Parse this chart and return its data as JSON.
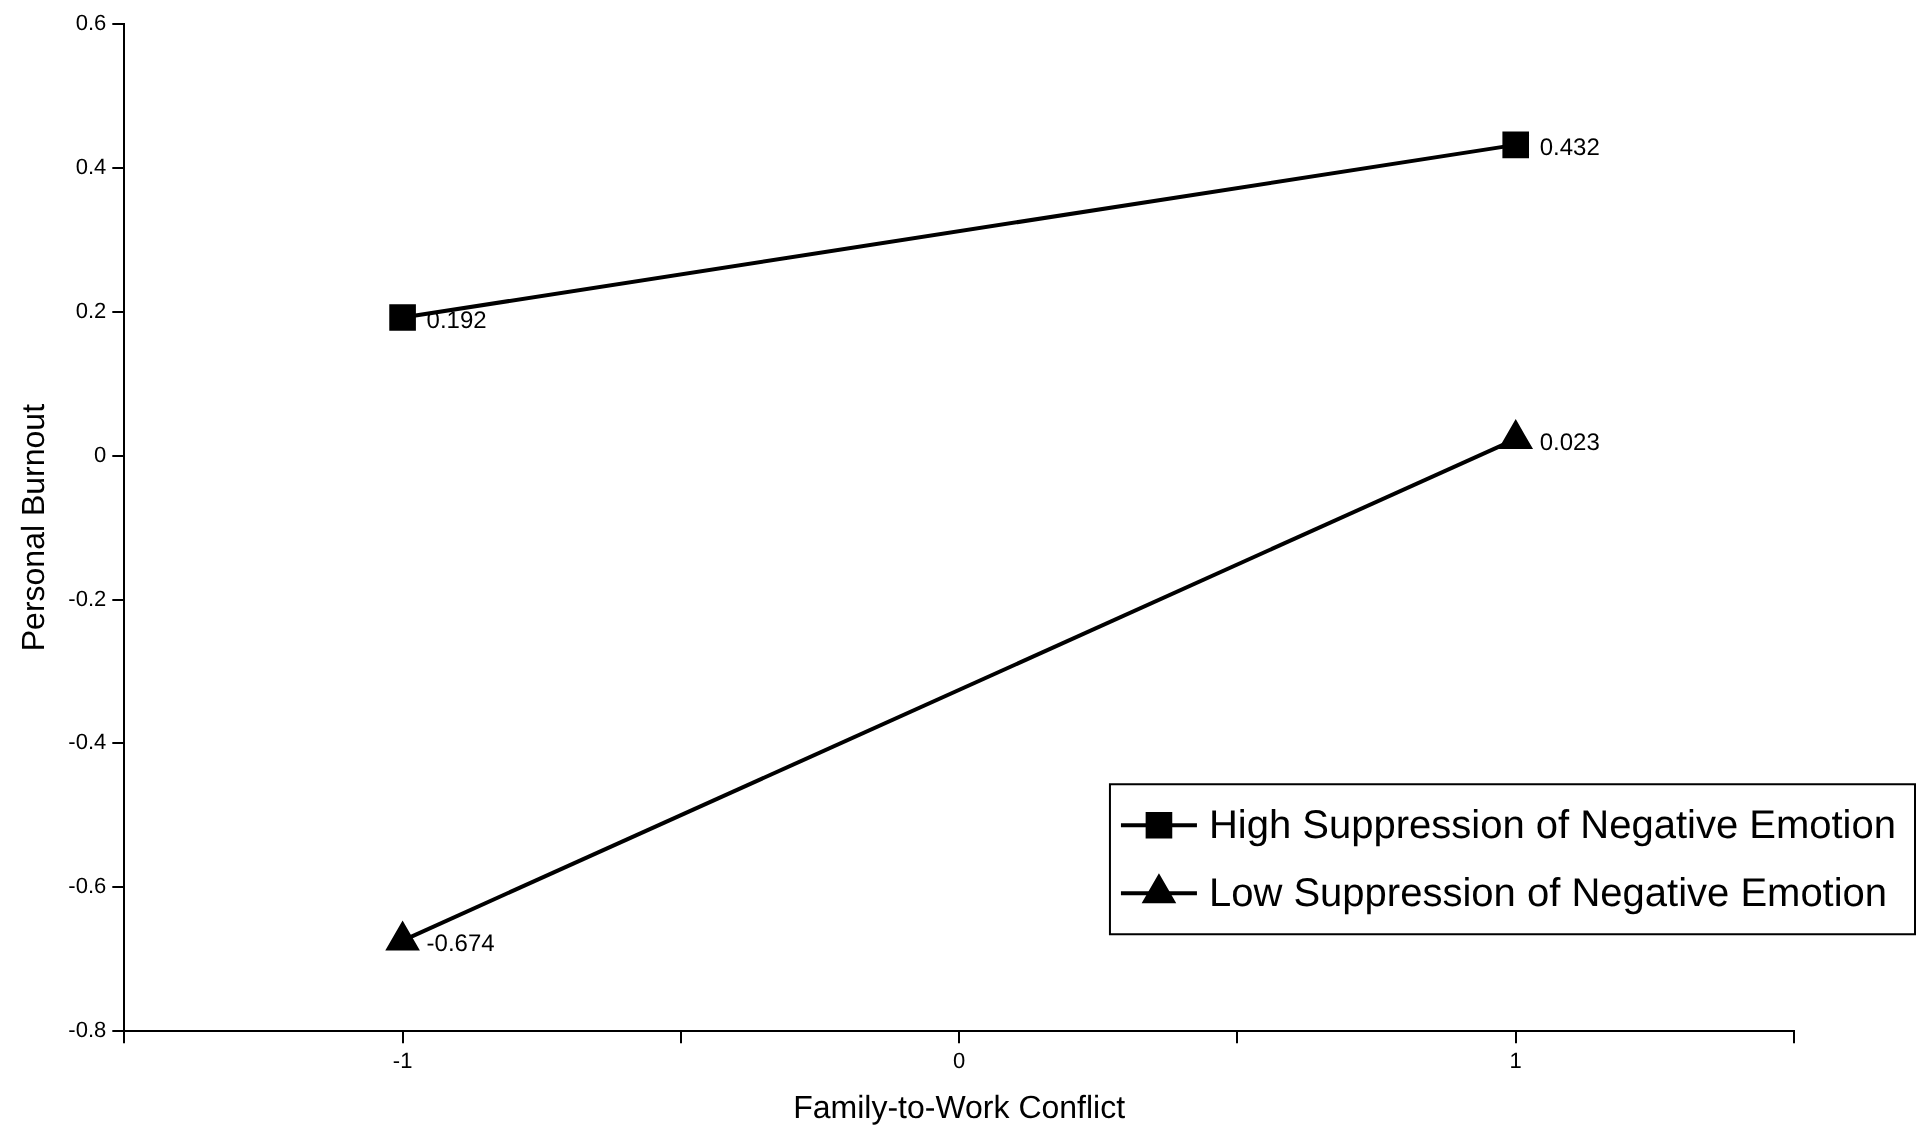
{
  "chart_data": {
    "type": "line",
    "xlabel": "Family-to-Work Conflict",
    "ylabel": "Personal Burnout",
    "x": [
      -1,
      1
    ],
    "series": [
      {
        "name": "High Suppression of Negative Emotion",
        "color": "#000000",
        "marker": "square",
        "values": [
          0.192,
          0.432
        ]
      },
      {
        "name": "Low Suppression of Negative Emotion",
        "color": "#000000",
        "marker": "triangle",
        "values": [
          -0.674,
          0.023
        ]
      }
    ],
    "xlim": [
      -1.5,
      1.5
    ],
    "xticks": [
      {
        "value": -1.5,
        "label": null
      },
      -1,
      {
        "value": -0.5,
        "label": null
      },
      0,
      {
        "value": 0.5,
        "label": null
      },
      1,
      {
        "value": 1.5,
        "label": null
      }
    ],
    "ylim": [
      -0.8,
      0.6
    ],
    "yticks": [
      -0.8,
      -0.6,
      -0.4,
      -0.2,
      0,
      0.2,
      0.4,
      0.6
    ],
    "grid": false,
    "legend": "bottom right",
    "data_labels": true,
    "line_style": "solid"
  }
}
